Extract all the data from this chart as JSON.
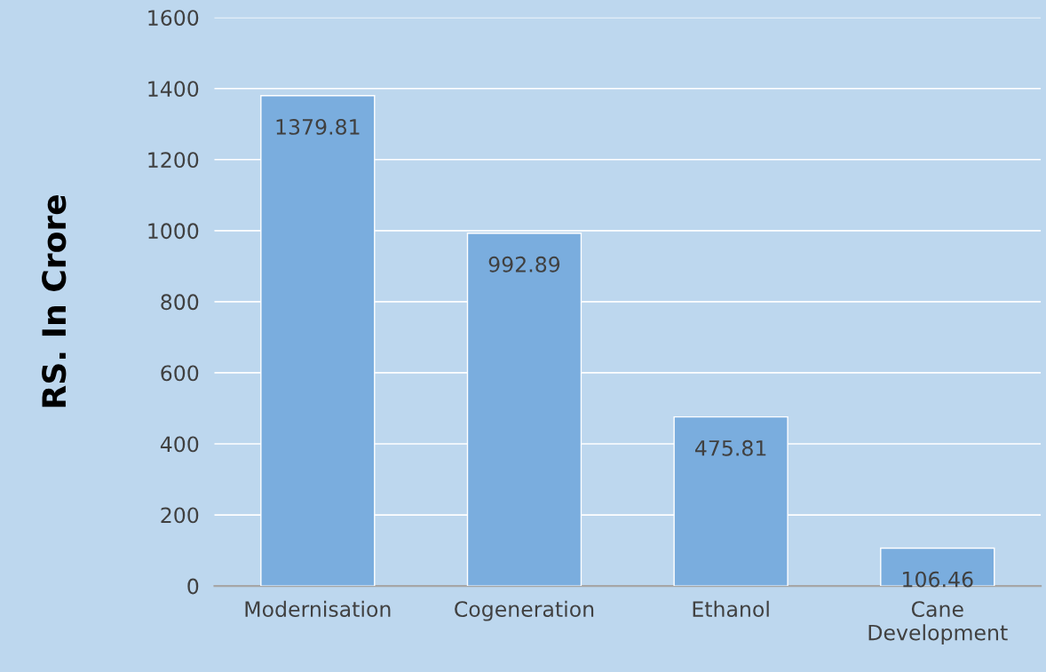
{
  "chart_data": {
    "type": "bar",
    "ylabel": "RS. In Crore",
    "categories": [
      "Modernisation",
      "Cogeneration",
      "Ethanol",
      "Cane Development"
    ],
    "values": [
      1379.81,
      992.89,
      475.81,
      106.46
    ],
    "color": "#7aadde",
    "ylim": [
      0,
      1600
    ],
    "yticks": [
      0,
      200,
      400,
      600,
      800,
      1000,
      1200,
      1400,
      1600
    ],
    "grid": "y",
    "data_labels": true
  }
}
